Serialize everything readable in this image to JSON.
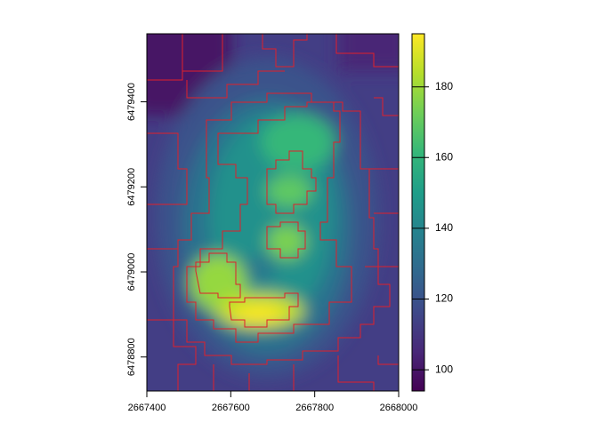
{
  "chart_data": {
    "type": "raster",
    "xlim": [
      2667400,
      2668000
    ],
    "xticks": [
      2667400,
      2667600,
      2667800,
      2668000
    ],
    "ylim": [
      6478720,
      6479560
    ],
    "yticks": [
      6478800,
      6479000,
      6479200,
      6479400
    ],
    "colorbar": {
      "colormap": "viridis",
      "lim": [
        94,
        195
      ],
      "ticks": [
        100,
        120,
        140,
        160,
        180
      ]
    }
  }
}
